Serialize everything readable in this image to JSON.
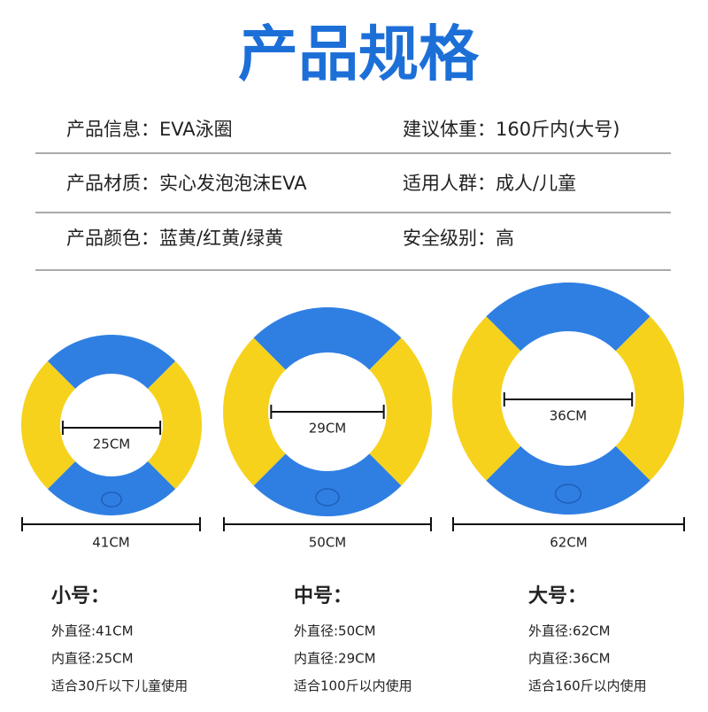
{
  "title": "产品规格",
  "specs": [
    [
      "产品信息：EVA泳圈",
      "建议体重：160斤内(大号)"
    ],
    [
      "产品材质：实心发泡泡沫EVA",
      "适用人群：成人/儿童"
    ],
    [
      "产品颜色：蓝黄/红黄/绿黄",
      "安全级别：高"
    ]
  ],
  "rings": [
    {
      "inner": "25CM",
      "outer": "41CM"
    },
    {
      "inner": "29CM",
      "outer": "50CM"
    },
    {
      "inner": "36CM",
      "outer": "62CM"
    }
  ],
  "sizes": [
    {
      "name": "小号：",
      "lines": [
        "外直径:41CM",
        "内直径:25CM",
        "适合30斤以下儿童使用"
      ]
    },
    {
      "name": "中号：",
      "lines": [
        "外直径:50CM",
        "内直径:29CM",
        "适合100斤以内使用"
      ]
    },
    {
      "name": "大号：",
      "lines": [
        "外直径:62CM",
        "内直径:36CM",
        "适合160斤以内使用"
      ]
    }
  ]
}
